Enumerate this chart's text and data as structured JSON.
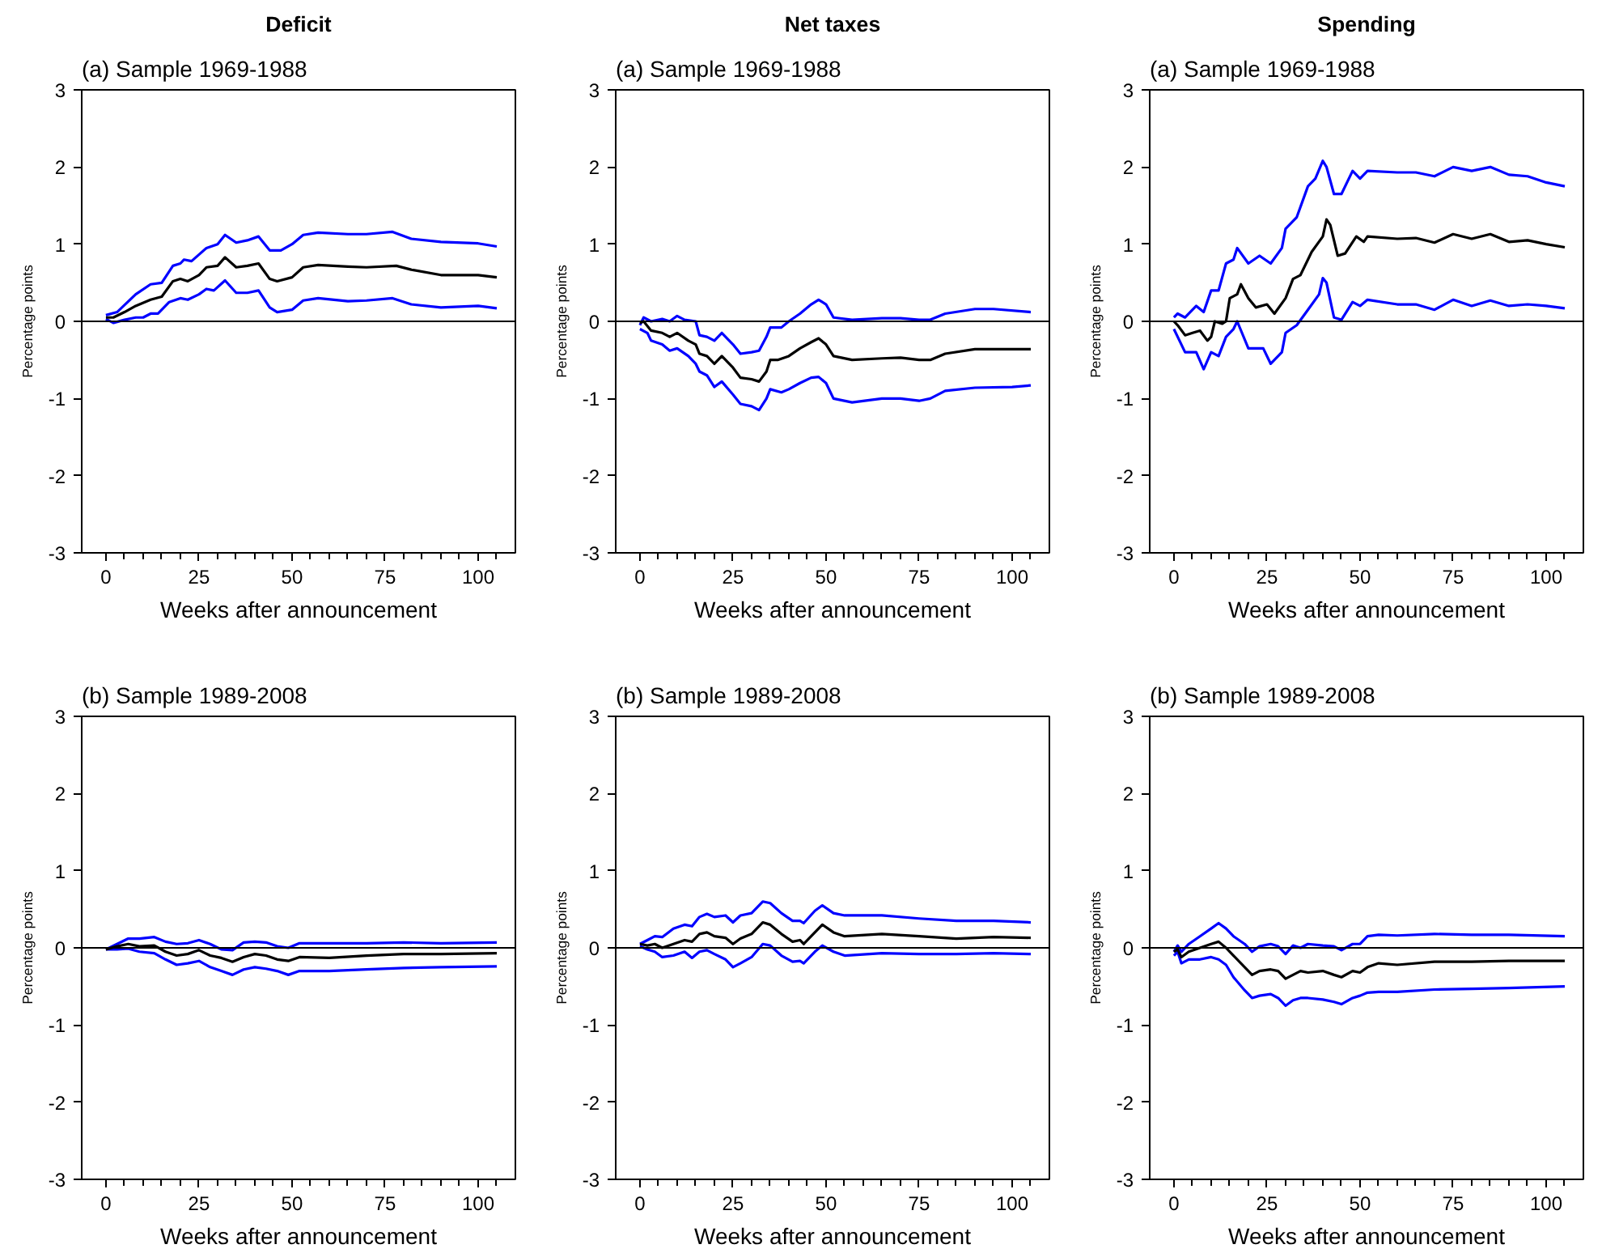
{
  "chart_data": [
    {
      "type": "line",
      "title": "Deficit",
      "subtitle": "(a) Sample 1969-1988",
      "xlabel": "Weeks after announcement",
      "ylabel": "Percentage points",
      "xlim": [
        -6.5,
        110
      ],
      "ylim": [
        -3,
        3
      ],
      "xticks": [
        0,
        {
          "value": 5,
          "label": null
        },
        {
          "value": 10,
          "label": null
        },
        {
          "value": 15,
          "label": null
        },
        {
          "value": 20,
          "label": null
        },
        25,
        {
          "value": 30,
          "label": null
        },
        {
          "value": 35,
          "label": null
        },
        {
          "value": 40,
          "label": null
        },
        {
          "value": 45,
          "label": null
        },
        50,
        {
          "value": 55,
          "label": null
        },
        {
          "value": 60,
          "label": null
        },
        {
          "value": 65,
          "label": null
        },
        {
          "value": 70,
          "label": null
        },
        75,
        {
          "value": 80,
          "label": null
        },
        {
          "value": 85,
          "label": null
        },
        {
          "value": 90,
          "label": null
        },
        {
          "value": 95,
          "label": null
        },
        100,
        {
          "value": 105,
          "label": null
        }
      ],
      "yticks": [
        -3,
        -2,
        -1,
        0,
        1,
        2,
        3
      ],
      "ref_lines": [
        {
          "axis": "y",
          "value": 0,
          "label": null,
          "color": "#000000"
        }
      ],
      "grid": false,
      "series": [
        {
          "color": "#0000ff",
          "x": [
            0,
            3,
            8,
            12,
            15,
            18,
            20,
            21,
            23,
            27,
            30,
            32,
            35,
            38,
            41,
            44,
            47,
            50,
            53,
            57,
            65,
            70,
            77,
            82,
            90,
            100,
            105
          ],
          "values": [
            0.08,
            0.12,
            0.35,
            0.48,
            0.5,
            0.72,
            0.75,
            0.8,
            0.78,
            0.95,
            1.0,
            1.12,
            1.02,
            1.05,
            1.1,
            0.92,
            0.92,
            1.0,
            1.12,
            1.15,
            1.13,
            1.13,
            1.16,
            1.07,
            1.03,
            1.01,
            0.97
          ]
        },
        {
          "color": "#0000ff",
          "x": [
            0,
            2,
            5,
            8,
            10,
            12,
            14,
            17,
            20,
            22,
            25,
            27,
            29,
            32,
            35,
            38,
            41,
            44,
            46,
            50,
            53,
            57,
            65,
            70,
            77,
            82,
            90,
            100,
            105
          ],
          "values": [
            0.03,
            -0.02,
            0.02,
            0.05,
            0.05,
            0.1,
            0.1,
            0.25,
            0.3,
            0.28,
            0.35,
            0.42,
            0.4,
            0.53,
            0.37,
            0.37,
            0.4,
            0.18,
            0.12,
            0.15,
            0.27,
            0.3,
            0.26,
            0.27,
            0.3,
            0.22,
            0.18,
            0.2,
            0.17
          ]
        },
        {
          "color": "#000000",
          "x": [
            0,
            2,
            5,
            8,
            12,
            15,
            18,
            20,
            22,
            25,
            27,
            30,
            32,
            35,
            38,
            41,
            44,
            46,
            50,
            53,
            57,
            65,
            70,
            78,
            82,
            90,
            100,
            105
          ],
          "values": [
            0.05,
            0.05,
            0.12,
            0.2,
            0.28,
            0.32,
            0.52,
            0.55,
            0.52,
            0.6,
            0.7,
            0.72,
            0.83,
            0.7,
            0.72,
            0.75,
            0.55,
            0.52,
            0.57,
            0.7,
            0.73,
            0.71,
            0.7,
            0.72,
            0.67,
            0.6,
            0.6,
            0.57
          ]
        }
      ]
    },
    {
      "type": "line",
      "title": "Net taxes",
      "subtitle": "(a) Sample 1969-1988",
      "xlabel": "Weeks after announcement",
      "ylabel": "Percentage points",
      "xlim": [
        -6.5,
        110
      ],
      "ylim": [
        -3,
        3
      ],
      "xticks": [
        0,
        {
          "value": 5,
          "label": null
        },
        {
          "value": 10,
          "label": null
        },
        {
          "value": 15,
          "label": null
        },
        {
          "value": 20,
          "label": null
        },
        25,
        {
          "value": 30,
          "label": null
        },
        {
          "value": 35,
          "label": null
        },
        {
          "value": 40,
          "label": null
        },
        {
          "value": 45,
          "label": null
        },
        50,
        {
          "value": 55,
          "label": null
        },
        {
          "value": 60,
          "label": null
        },
        {
          "value": 65,
          "label": null
        },
        {
          "value": 70,
          "label": null
        },
        75,
        {
          "value": 80,
          "label": null
        },
        {
          "value": 85,
          "label": null
        },
        {
          "value": 90,
          "label": null
        },
        {
          "value": 95,
          "label": null
        },
        100,
        {
          "value": 105,
          "label": null
        }
      ],
      "yticks": [
        -3,
        -2,
        -1,
        0,
        1,
        2,
        3
      ],
      "ref_lines": [
        {
          "axis": "y",
          "value": 0,
          "label": null,
          "color": "#000000"
        }
      ],
      "grid": false,
      "series": [
        {
          "color": "#0000ff",
          "x": [
            0,
            1,
            3,
            6,
            8,
            10,
            12,
            15,
            16,
            18,
            20,
            22,
            25,
            27,
            30,
            32,
            34,
            35,
            38,
            40,
            43,
            46,
            48,
            50,
            52,
            57,
            65,
            70,
            75,
            78,
            82,
            90,
            95,
            105
          ],
          "values": [
            -0.05,
            0.05,
            0.0,
            0.03,
            0.0,
            0.07,
            0.02,
            0.0,
            -0.18,
            -0.2,
            -0.25,
            -0.15,
            -0.3,
            -0.42,
            -0.4,
            -0.38,
            -0.2,
            -0.08,
            -0.08,
            0.0,
            0.1,
            0.22,
            0.28,
            0.22,
            0.05,
            0.02,
            0.04,
            0.04,
            0.02,
            0.02,
            0.1,
            0.16,
            0.16,
            0.12
          ]
        },
        {
          "color": "#0000ff",
          "x": [
            0,
            2,
            3,
            6,
            8,
            10,
            13,
            15,
            16,
            18,
            20,
            22,
            25,
            27,
            30,
            32,
            34,
            35,
            38,
            40,
            43,
            46,
            48,
            50,
            52,
            57,
            65,
            70,
            75,
            78,
            82,
            90,
            100,
            105
          ],
          "values": [
            -0.1,
            -0.15,
            -0.25,
            -0.3,
            -0.38,
            -0.35,
            -0.45,
            -0.55,
            -0.65,
            -0.7,
            -0.85,
            -0.78,
            -0.95,
            -1.07,
            -1.1,
            -1.15,
            -1.0,
            -0.88,
            -0.92,
            -0.88,
            -0.8,
            -0.73,
            -0.72,
            -0.8,
            -1.0,
            -1.05,
            -1.0,
            -1.0,
            -1.03,
            -1.0,
            -0.9,
            -0.86,
            -0.85,
            -0.83
          ]
        },
        {
          "color": "#000000",
          "x": [
            0,
            1,
            3,
            6,
            8,
            10,
            13,
            15,
            16,
            18,
            20,
            22,
            25,
            27,
            30,
            32,
            34,
            35,
            37,
            40,
            43,
            46,
            48,
            50,
            52,
            57,
            65,
            70,
            75,
            78,
            82,
            90,
            100,
            105
          ],
          "values": [
            -0.02,
            0.0,
            -0.12,
            -0.15,
            -0.2,
            -0.15,
            -0.25,
            -0.3,
            -0.42,
            -0.45,
            -0.55,
            -0.45,
            -0.6,
            -0.73,
            -0.75,
            -0.78,
            -0.65,
            -0.5,
            -0.5,
            -0.45,
            -0.35,
            -0.27,
            -0.22,
            -0.3,
            -0.45,
            -0.5,
            -0.48,
            -0.47,
            -0.5,
            -0.5,
            -0.42,
            -0.36,
            -0.36,
            -0.36
          ]
        }
      ]
    },
    {
      "type": "line",
      "title": "Spending",
      "subtitle": "(a) Sample 1969-1988",
      "xlabel": "Weeks after announcement",
      "ylabel": "Percentage points",
      "xlim": [
        -6.5,
        110
      ],
      "ylim": [
        -3,
        3
      ],
      "xticks": [
        0,
        {
          "value": 5,
          "label": null
        },
        {
          "value": 10,
          "label": null
        },
        {
          "value": 15,
          "label": null
        },
        {
          "value": 20,
          "label": null
        },
        25,
        {
          "value": 30,
          "label": null
        },
        {
          "value": 35,
          "label": null
        },
        {
          "value": 40,
          "label": null
        },
        {
          "value": 45,
          "label": null
        },
        50,
        {
          "value": 55,
          "label": null
        },
        {
          "value": 60,
          "label": null
        },
        {
          "value": 65,
          "label": null
        },
        {
          "value": 70,
          "label": null
        },
        75,
        {
          "value": 80,
          "label": null
        },
        {
          "value": 85,
          "label": null
        },
        {
          "value": 90,
          "label": null
        },
        {
          "value": 95,
          "label": null
        },
        100,
        {
          "value": 105,
          "label": null
        }
      ],
      "yticks": [
        -3,
        -2,
        -1,
        0,
        1,
        2,
        3
      ],
      "ref_lines": [
        {
          "axis": "y",
          "value": 0,
          "label": null,
          "color": "#000000"
        }
      ],
      "grid": false,
      "series": [
        {
          "color": "#0000ff",
          "x": [
            0,
            1,
            3,
            6,
            8,
            10,
            12,
            14,
            16,
            17,
            20,
            23,
            26,
            29,
            30,
            33,
            36,
            38,
            40,
            41,
            43,
            45,
            48,
            50,
            52,
            60,
            65,
            70,
            75,
            80,
            85,
            90,
            95,
            100,
            105
          ],
          "values": [
            0.05,
            0.1,
            0.05,
            0.2,
            0.12,
            0.4,
            0.4,
            0.75,
            0.8,
            0.95,
            0.75,
            0.85,
            0.75,
            0.95,
            1.2,
            1.35,
            1.75,
            1.85,
            2.08,
            2.0,
            1.65,
            1.65,
            1.95,
            1.85,
            1.95,
            1.93,
            1.93,
            1.88,
            2.0,
            1.95,
            2.0,
            1.9,
            1.88,
            1.8,
            1.75
          ]
        },
        {
          "color": "#0000ff",
          "x": [
            0,
            2,
            3,
            6,
            8,
            10,
            12,
            14,
            16,
            17,
            20,
            22,
            24,
            26,
            29,
            30,
            33,
            36,
            39,
            40,
            41,
            43,
            45,
            48,
            50,
            52,
            60,
            65,
            70,
            75,
            80,
            85,
            90,
            95,
            100,
            105
          ],
          "values": [
            -0.1,
            -0.3,
            -0.4,
            -0.4,
            -0.62,
            -0.4,
            -0.45,
            -0.2,
            -0.1,
            0.0,
            -0.35,
            -0.35,
            -0.35,
            -0.55,
            -0.4,
            -0.15,
            -0.05,
            0.15,
            0.35,
            0.56,
            0.5,
            0.05,
            0.02,
            0.25,
            0.2,
            0.28,
            0.22,
            0.22,
            0.15,
            0.28,
            0.2,
            0.27,
            0.2,
            0.22,
            0.2,
            0.17
          ]
        },
        {
          "color": "#000000",
          "x": [
            0,
            1,
            3,
            5,
            7,
            9,
            10,
            11,
            13,
            14,
            15,
            17,
            18,
            20,
            22,
            25,
            27,
            30,
            32,
            34,
            37,
            40,
            41,
            42,
            44,
            46,
            49,
            51,
            52,
            60,
            65,
            70,
            75,
            80,
            85,
            90,
            95,
            100,
            105
          ],
          "values": [
            0.0,
            -0.05,
            -0.18,
            -0.15,
            -0.12,
            -0.25,
            -0.2,
            0.0,
            -0.03,
            0.0,
            0.3,
            0.35,
            0.48,
            0.3,
            0.18,
            0.22,
            0.1,
            0.3,
            0.55,
            0.6,
            0.9,
            1.1,
            1.32,
            1.25,
            0.85,
            0.88,
            1.1,
            1.03,
            1.1,
            1.07,
            1.08,
            1.02,
            1.13,
            1.07,
            1.13,
            1.03,
            1.05,
            1.0,
            0.96
          ]
        }
      ]
    },
    {
      "type": "line",
      "subtitle": "(b) Sample 1989-2008",
      "xlabel": "Weeks after announcement",
      "ylabel": "Percentage points",
      "xlim": [
        -6.5,
        110
      ],
      "ylim": [
        -3,
        3
      ],
      "xticks": [
        0,
        {
          "value": 5,
          "label": null
        },
        {
          "value": 10,
          "label": null
        },
        {
          "value": 15,
          "label": null
        },
        {
          "value": 20,
          "label": null
        },
        25,
        {
          "value": 30,
          "label": null
        },
        {
          "value": 35,
          "label": null
        },
        {
          "value": 40,
          "label": null
        },
        {
          "value": 45,
          "label": null
        },
        50,
        {
          "value": 55,
          "label": null
        },
        {
          "value": 60,
          "label": null
        },
        {
          "value": 65,
          "label": null
        },
        {
          "value": 70,
          "label": null
        },
        75,
        {
          "value": 80,
          "label": null
        },
        {
          "value": 85,
          "label": null
        },
        {
          "value": 90,
          "label": null
        },
        {
          "value": 95,
          "label": null
        },
        100,
        {
          "value": 105,
          "label": null
        }
      ],
      "yticks": [
        -3,
        -2,
        -1,
        0,
        1,
        2,
        3
      ],
      "ref_lines": [
        {
          "axis": "y",
          "value": 0,
          "label": null,
          "color": "#000000"
        }
      ],
      "grid": false,
      "series": [
        {
          "color": "#0000ff",
          "x": [
            0,
            3,
            6,
            9,
            13,
            16,
            19,
            22,
            25,
            28,
            31,
            34,
            37,
            40,
            43,
            46,
            49,
            52,
            60,
            70,
            80,
            90,
            105
          ],
          "values": [
            -0.02,
            0.05,
            0.12,
            0.12,
            0.14,
            0.08,
            0.05,
            0.06,
            0.1,
            0.05,
            -0.02,
            -0.03,
            0.07,
            0.08,
            0.07,
            0.02,
            0.0,
            0.06,
            0.06,
            0.06,
            0.07,
            0.06,
            0.07
          ]
        },
        {
          "color": "#0000ff",
          "x": [
            0,
            3,
            6,
            9,
            13,
            16,
            19,
            22,
            25,
            28,
            31,
            34,
            37,
            40,
            43,
            46,
            49,
            52,
            60,
            70,
            80,
            90,
            105
          ],
          "values": [
            -0.02,
            -0.02,
            -0.01,
            -0.05,
            -0.07,
            -0.15,
            -0.22,
            -0.2,
            -0.17,
            -0.25,
            -0.3,
            -0.35,
            -0.28,
            -0.25,
            -0.27,
            -0.3,
            -0.35,
            -0.3,
            -0.3,
            -0.28,
            -0.26,
            -0.25,
            -0.24
          ]
        },
        {
          "color": "#000000",
          "x": [
            0,
            3,
            6,
            9,
            13,
            16,
            19,
            22,
            25,
            28,
            31,
            34,
            37,
            40,
            43,
            46,
            49,
            52,
            60,
            70,
            80,
            90,
            105
          ],
          "values": [
            -0.02,
            0.02,
            0.05,
            0.02,
            0.03,
            -0.05,
            -0.1,
            -0.08,
            -0.03,
            -0.1,
            -0.13,
            -0.18,
            -0.12,
            -0.08,
            -0.1,
            -0.15,
            -0.17,
            -0.12,
            -0.13,
            -0.1,
            -0.08,
            -0.08,
            -0.07
          ]
        }
      ]
    },
    {
      "type": "line",
      "subtitle": "(b) Sample 1989-2008",
      "xlabel": "Weeks after announcement",
      "ylabel": "Percentage points",
      "xlim": [
        -6.5,
        110
      ],
      "ylim": [
        -3,
        3
      ],
      "xticks": [
        0,
        {
          "value": 5,
          "label": null
        },
        {
          "value": 10,
          "label": null
        },
        {
          "value": 15,
          "label": null
        },
        {
          "value": 20,
          "label": null
        },
        25,
        {
          "value": 30,
          "label": null
        },
        {
          "value": 35,
          "label": null
        },
        {
          "value": 40,
          "label": null
        },
        {
          "value": 45,
          "label": null
        },
        50,
        {
          "value": 55,
          "label": null
        },
        {
          "value": 60,
          "label": null
        },
        {
          "value": 65,
          "label": null
        },
        {
          "value": 70,
          "label": null
        },
        75,
        {
          "value": 80,
          "label": null
        },
        {
          "value": 85,
          "label": null
        },
        {
          "value": 90,
          "label": null
        },
        {
          "value": 95,
          "label": null
        },
        100,
        {
          "value": 105,
          "label": null
        }
      ],
      "yticks": [
        -3,
        -2,
        -1,
        0,
        1,
        2,
        3
      ],
      "ref_lines": [
        {
          "axis": "y",
          "value": 0,
          "label": null,
          "color": "#000000"
        }
      ],
      "grid": false,
      "series": [
        {
          "color": "#0000ff",
          "x": [
            0,
            2,
            4,
            6,
            9,
            12,
            14,
            16,
            18,
            20,
            23,
            25,
            27,
            30,
            33,
            35,
            38,
            41,
            43,
            44,
            47,
            49,
            52,
            55,
            65,
            75,
            85,
            95,
            105
          ],
          "values": [
            0.05,
            0.1,
            0.15,
            0.14,
            0.25,
            0.3,
            0.28,
            0.4,
            0.44,
            0.4,
            0.42,
            0.33,
            0.42,
            0.45,
            0.6,
            0.58,
            0.45,
            0.35,
            0.35,
            0.32,
            0.48,
            0.55,
            0.45,
            0.42,
            0.42,
            0.38,
            0.35,
            0.35,
            0.33
          ]
        },
        {
          "color": "#0000ff",
          "x": [
            0,
            2,
            4,
            6,
            9,
            12,
            14,
            16,
            18,
            20,
            23,
            25,
            27,
            30,
            33,
            35,
            38,
            41,
            43,
            44,
            47,
            49,
            52,
            55,
            65,
            75,
            85,
            95,
            105
          ],
          "values": [
            0.02,
            -0.02,
            -0.05,
            -0.12,
            -0.1,
            -0.05,
            -0.13,
            -0.05,
            -0.03,
            -0.08,
            -0.15,
            -0.25,
            -0.2,
            -0.12,
            0.05,
            0.03,
            -0.1,
            -0.18,
            -0.17,
            -0.2,
            -0.05,
            0.03,
            -0.05,
            -0.1,
            -0.07,
            -0.08,
            -0.08,
            -0.07,
            -0.08
          ]
        },
        {
          "color": "#000000",
          "x": [
            0,
            2,
            4,
            6,
            9,
            12,
            14,
            16,
            18,
            20,
            23,
            25,
            27,
            30,
            33,
            35,
            38,
            41,
            43,
            44,
            47,
            49,
            52,
            55,
            65,
            75,
            85,
            95,
            105
          ],
          "values": [
            0.05,
            0.03,
            0.05,
            0.0,
            0.05,
            0.1,
            0.08,
            0.18,
            0.2,
            0.15,
            0.13,
            0.05,
            0.12,
            0.18,
            0.33,
            0.3,
            0.18,
            0.08,
            0.1,
            0.05,
            0.2,
            0.3,
            0.2,
            0.15,
            0.18,
            0.15,
            0.12,
            0.14,
            0.13
          ]
        }
      ]
    },
    {
      "type": "line",
      "subtitle": "(b) Sample 1989-2008",
      "xlabel": "Weeks after announcement",
      "ylabel": "Percentage points",
      "xlim": [
        -6.5,
        110
      ],
      "ylim": [
        -3,
        3
      ],
      "xticks": [
        0,
        {
          "value": 5,
          "label": null
        },
        {
          "value": 10,
          "label": null
        },
        {
          "value": 15,
          "label": null
        },
        {
          "value": 20,
          "label": null
        },
        25,
        {
          "value": 30,
          "label": null
        },
        {
          "value": 35,
          "label": null
        },
        {
          "value": 40,
          "label": null
        },
        {
          "value": 45,
          "label": null
        },
        50,
        {
          "value": 55,
          "label": null
        },
        {
          "value": 60,
          "label": null
        },
        {
          "value": 65,
          "label": null
        },
        {
          "value": 70,
          "label": null
        },
        75,
        {
          "value": 80,
          "label": null
        },
        {
          "value": 85,
          "label": null
        },
        {
          "value": 90,
          "label": null
        },
        {
          "value": 95,
          "label": null
        },
        100,
        {
          "value": 105,
          "label": null
        }
      ],
      "yticks": [
        -3,
        -2,
        -1,
        0,
        1,
        2,
        3
      ],
      "ref_lines": [
        {
          "axis": "y",
          "value": 0,
          "label": null,
          "color": "#000000"
        }
      ],
      "grid": false,
      "series": [
        {
          "color": "#0000ff",
          "x": [
            0,
            1,
            2,
            4,
            7,
            10,
            12,
            14,
            16,
            19,
            21,
            23,
            26,
            28,
            30,
            32,
            34,
            36,
            40,
            43,
            45,
            48,
            50,
            52,
            55,
            60,
            70,
            80,
            90,
            105
          ],
          "values": [
            -0.05,
            0.03,
            -0.05,
            0.05,
            0.15,
            0.25,
            0.32,
            0.25,
            0.15,
            0.05,
            -0.05,
            0.02,
            0.05,
            0.02,
            -0.08,
            0.03,
            0.0,
            0.05,
            0.03,
            0.02,
            -0.03,
            0.05,
            0.05,
            0.15,
            0.17,
            0.16,
            0.18,
            0.17,
            0.17,
            0.15
          ]
        },
        {
          "color": "#0000ff",
          "x": [
            0,
            1,
            2,
            4,
            7,
            10,
            12,
            14,
            16,
            19,
            21,
            23,
            26,
            28,
            30,
            32,
            34,
            36,
            40,
            43,
            45,
            48,
            50,
            52,
            55,
            60,
            70,
            80,
            90,
            105
          ],
          "values": [
            -0.1,
            -0.05,
            -0.2,
            -0.15,
            -0.15,
            -0.12,
            -0.15,
            -0.22,
            -0.38,
            -0.55,
            -0.65,
            -0.62,
            -0.6,
            -0.65,
            -0.75,
            -0.68,
            -0.65,
            -0.65,
            -0.67,
            -0.7,
            -0.73,
            -0.65,
            -0.62,
            -0.58,
            -0.57,
            -0.57,
            -0.54,
            -0.53,
            -0.52,
            -0.5
          ]
        },
        {
          "color": "#000000",
          "x": [
            0,
            1,
            2,
            4,
            7,
            10,
            12,
            14,
            16,
            19,
            21,
            23,
            26,
            28,
            30,
            32,
            34,
            36,
            40,
            43,
            45,
            48,
            50,
            52,
            55,
            60,
            70,
            80,
            90,
            105
          ],
          "values": [
            -0.05,
            -0.02,
            -0.12,
            -0.05,
            0.0,
            0.05,
            0.08,
            0.0,
            -0.1,
            -0.25,
            -0.35,
            -0.3,
            -0.28,
            -0.3,
            -0.4,
            -0.35,
            -0.3,
            -0.32,
            -0.3,
            -0.35,
            -0.38,
            -0.3,
            -0.32,
            -0.25,
            -0.2,
            -0.22,
            -0.18,
            -0.18,
            -0.17,
            -0.17
          ]
        }
      ]
    }
  ]
}
